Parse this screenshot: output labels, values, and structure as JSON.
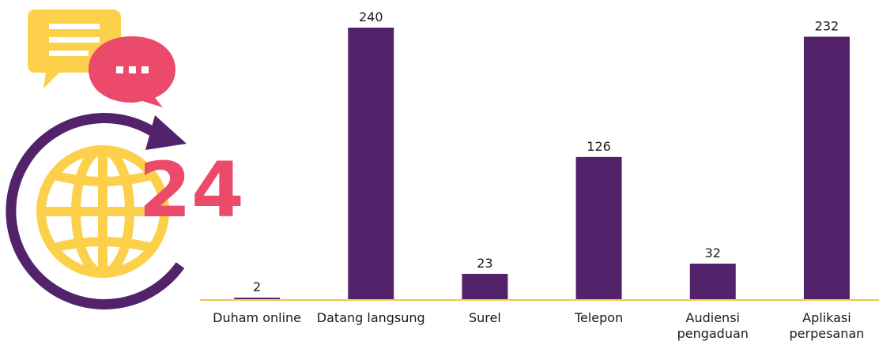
{
  "icon": {
    "label": "24"
  },
  "chart_data": {
    "type": "bar",
    "categories": [
      "Duham online",
      "Datang langsung",
      "Surel",
      "Telepon",
      "Audiensi pengaduan",
      "Aplikasi perpesanan"
    ],
    "values": [
      2,
      240,
      23,
      126,
      32,
      232
    ],
    "color": "#52236a",
    "baseline_color": "#f5c842",
    "ylim": [
      0,
      240
    ]
  }
}
